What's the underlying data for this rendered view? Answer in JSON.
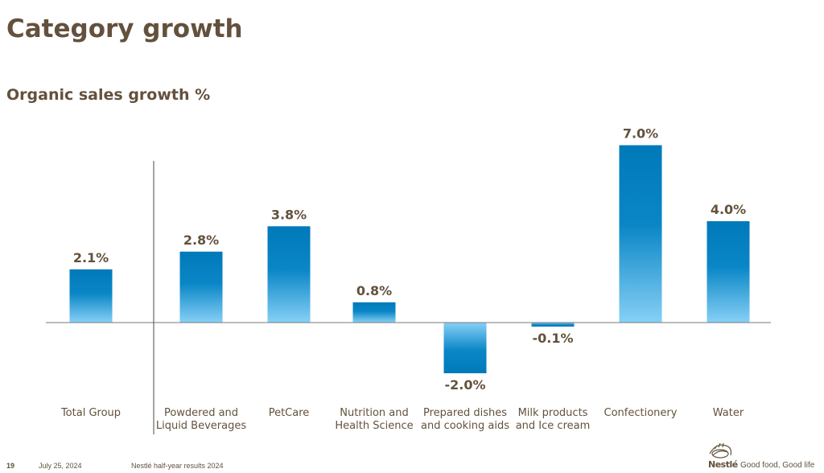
{
  "page": {
    "title": "Category growth",
    "subtitle": "Organic sales growth %"
  },
  "footer": {
    "page_number": "19",
    "date": "July 25, 2024",
    "document": "Nestlé half-year results 2024",
    "brand": "Nestlé",
    "tagline": "Good food, Good life"
  },
  "colors": {
    "text": "#63513d",
    "bar_dark": "#0079b9",
    "bar_light": "#80cdf5"
  },
  "chart_data": {
    "type": "bar",
    "title": "Organic sales growth %",
    "categories": [
      [
        "Total Group"
      ],
      [
        "Powdered and",
        "Liquid Beverages"
      ],
      [
        "PetCare"
      ],
      [
        "Nutrition and",
        "Health Science"
      ],
      [
        "Prepared dishes",
        "and cooking aids"
      ],
      [
        "Milk products",
        "and Ice cream"
      ],
      [
        "Confectionery"
      ],
      [
        "Water"
      ]
    ],
    "values": [
      2.1,
      2.8,
      3.8,
      0.8,
      -2.0,
      -0.1,
      7.0,
      4.0
    ],
    "data_labels": [
      "2.1%",
      "2.8%",
      "3.8%",
      "0.8%",
      "-2.0%",
      "-0.1%",
      "7.0%",
      "4.0%"
    ],
    "ylim": [
      -2.0,
      7.0
    ],
    "separator_after_index": 0,
    "grid": false,
    "legend": "none"
  }
}
